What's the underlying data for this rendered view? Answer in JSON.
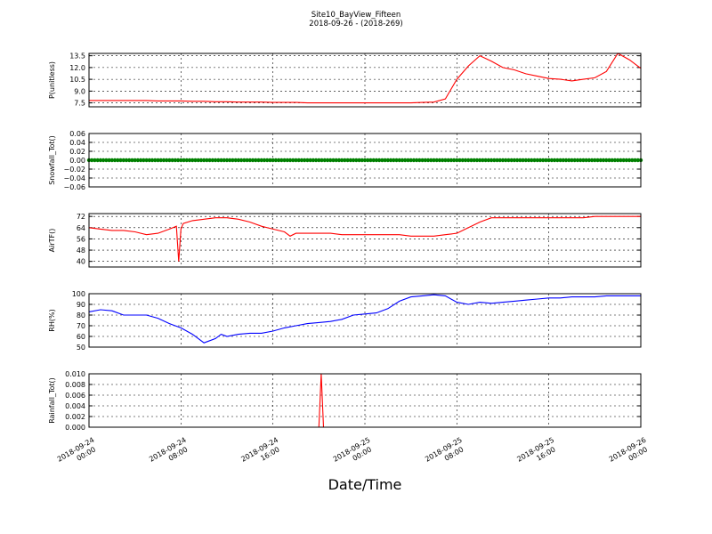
{
  "header": {
    "title": "Site10_BayView_Fifteen",
    "subtitle": "2018-09-26 - (2018-269)"
  },
  "chart_data": [
    {
      "type": "line",
      "ylabel": "P(unitless)",
      "ylim": [
        7.0,
        13.8
      ],
      "yticks": [
        "7.5",
        "9.0",
        "10.5",
        "12.0",
        "13.5"
      ],
      "grid": true,
      "color": "#ff0000",
      "x": [
        0,
        1,
        2,
        3,
        4,
        5,
        6,
        7,
        8,
        9,
        10,
        11,
        12,
        13,
        14,
        15,
        16,
        17,
        18,
        19,
        20,
        21,
        22,
        23,
        24,
        25,
        26,
        27,
        28,
        29,
        30,
        31,
        32,
        33,
        34,
        35,
        36,
        37,
        38,
        39,
        40,
        41,
        42,
        43,
        44,
        45,
        46,
        47,
        48
      ],
      "y": [
        7.8,
        7.8,
        7.8,
        7.8,
        7.8,
        7.8,
        7.75,
        7.75,
        7.75,
        7.7,
        7.7,
        7.65,
        7.65,
        7.6,
        7.6,
        7.6,
        7.55,
        7.55,
        7.55,
        7.5,
        7.5,
        7.5,
        7.5,
        7.5,
        7.5,
        7.5,
        7.5,
        7.5,
        7.5,
        7.55,
        7.6,
        8.0,
        10.5,
        12.2,
        13.5,
        12.8,
        12.0,
        11.7,
        11.2,
        10.9,
        10.6,
        10.5,
        10.3,
        10.5,
        10.7,
        11.5,
        13.8,
        13.0,
        11.9
      ]
    },
    {
      "type": "scatter",
      "ylabel": "Snowfall_Tot()",
      "ylim": [
        -0.06,
        0.06
      ],
      "yticks": [
        "−0.06",
        "−0.04",
        "−0.02",
        "0.00",
        "0.02",
        "0.04",
        "0.06"
      ],
      "grid": true,
      "color": "#008000",
      "constant_value": 0.0
    },
    {
      "type": "line",
      "ylabel": "AirTF()",
      "ylim": [
        36,
        74
      ],
      "yticks": [
        "40",
        "48",
        "56",
        "64",
        "72"
      ],
      "grid": true,
      "color": "#ff0000",
      "x": [
        0,
        1,
        2,
        3,
        4,
        5,
        6,
        7,
        7.6,
        7.8,
        8.0,
        8.2,
        9,
        10,
        11,
        12,
        13,
        14,
        15,
        16,
        17,
        17.5,
        18,
        19,
        20,
        21,
        22,
        23,
        24,
        25,
        26,
        27,
        28,
        29,
        30,
        31,
        32,
        33,
        34,
        35,
        36,
        37,
        38,
        39,
        40,
        41,
        42,
        43,
        44,
        45,
        46,
        47,
        48
      ],
      "y": [
        64,
        63,
        62,
        62,
        61,
        59,
        60,
        63,
        65,
        40,
        63,
        67,
        69,
        70,
        71,
        71,
        70,
        68,
        65,
        63,
        61,
        58,
        60,
        60,
        60,
        60,
        59,
        59,
        59,
        59,
        59,
        59,
        58,
        58,
        58,
        59,
        60,
        64,
        68,
        71,
        71,
        71,
        71,
        71,
        71,
        71,
        71,
        71,
        72,
        72,
        72,
        72,
        72
      ]
    },
    {
      "type": "line",
      "ylabel": "RH(%)",
      "ylim": [
        50,
        100
      ],
      "yticks": [
        "50",
        "60",
        "70",
        "80",
        "90",
        "100"
      ],
      "grid": true,
      "color": "#0000ff",
      "x": [
        0,
        1,
        2,
        3,
        4,
        5,
        6,
        7,
        8,
        9,
        10,
        11,
        11.5,
        12,
        13,
        14,
        15,
        16,
        17,
        18,
        19,
        20,
        21,
        22,
        23,
        24,
        25,
        26,
        27,
        28,
        29,
        30,
        31,
        32,
        33,
        34,
        35,
        36,
        37,
        38,
        39,
        40,
        41,
        42,
        43,
        44,
        45,
        46,
        47,
        48
      ],
      "y": [
        83,
        85,
        84,
        80,
        80,
        80,
        77,
        72,
        68,
        62,
        54,
        58,
        62,
        60,
        62,
        63,
        63,
        65,
        68,
        70,
        72,
        73,
        74,
        76,
        80,
        81,
        82,
        86,
        93,
        97,
        98,
        99,
        98,
        92,
        90,
        92,
        91,
        92,
        93,
        94,
        95,
        96,
        96,
        97,
        97,
        97,
        98,
        98,
        98,
        98
      ]
    },
    {
      "type": "line",
      "ylabel": "Rainfall_Tot()",
      "ylim": [
        0.0,
        0.01
      ],
      "yticks": [
        "0.000",
        "0.002",
        "0.004",
        "0.006",
        "0.008",
        "0.010"
      ],
      "grid": true,
      "color": "#ff0000",
      "x": [
        0,
        20.0,
        20.2,
        20.4,
        48
      ],
      "y": [
        0.0,
        0.0,
        0.01,
        0.0,
        0.0
      ]
    }
  ],
  "x_axis": {
    "label": "Date/Time",
    "range_hours": [
      0,
      48
    ],
    "tick_hours": [
      0,
      8,
      16,
      24,
      32,
      40,
      48
    ],
    "tick_labels": [
      [
        "2018-09-24",
        "00:00"
      ],
      [
        "2018-09-24",
        "08:00"
      ],
      [
        "2018-09-24",
        "16:00"
      ],
      [
        "2018-09-25",
        "00:00"
      ],
      [
        "2018-09-25",
        "08:00"
      ],
      [
        "2018-09-25",
        "16:00"
      ],
      [
        "2018-09-26",
        "00:00"
      ]
    ]
  }
}
